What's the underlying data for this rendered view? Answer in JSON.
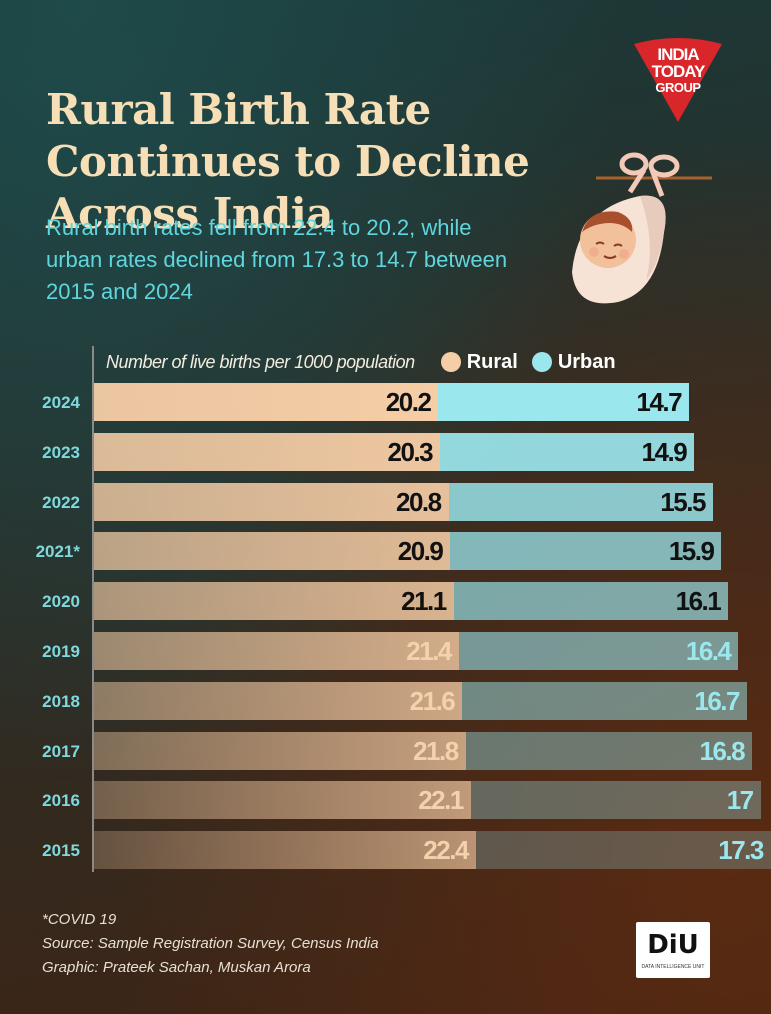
{
  "header": {
    "title": "Rural Birth Rate Continues to Decline Across India",
    "subtitle": "Rural birth rates fell from 22.4 to 20.2, while urban rates declined from 17.3 to 14.7 between 2015 and 2024",
    "logo_text": [
      "INDIA",
      "TODAY",
      "GROUP"
    ]
  },
  "legend": {
    "label": "Number of live births per 1000 population",
    "items": [
      {
        "name": "Rural",
        "color": "#f5cda6"
      },
      {
        "name": "Urban",
        "color": "#9be7ee"
      }
    ]
  },
  "chart_data": {
    "type": "bar",
    "stacked": true,
    "orientation": "horizontal",
    "categories": [
      "2024",
      "2023",
      "2022",
      "2021*",
      "2020",
      "2019",
      "2018",
      "2017",
      "2016",
      "2015"
    ],
    "series": [
      {
        "name": "Rural",
        "values": [
          20.2,
          20.3,
          20.8,
          20.9,
          21.1,
          21.4,
          21.6,
          21.8,
          22.1,
          22.4
        ]
      },
      {
        "name": "Urban",
        "values": [
          14.7,
          14.9,
          15.5,
          15.9,
          16.1,
          16.4,
          16.7,
          16.8,
          17,
          17.3
        ]
      }
    ],
    "value_labels": {
      "Rural": [
        "20.2",
        "20.3",
        "20.8",
        "20.9",
        "21.1",
        "21.4",
        "21.6",
        "21.8",
        "22.1",
        "22.4"
      ],
      "Urban": [
        "14.7",
        "14.9",
        "15.5",
        "15.9",
        "16.1",
        "16.4",
        "16.7",
        "16.8",
        "17",
        "17.3"
      ]
    },
    "colors": {
      "rural": "#f5cda6",
      "urban": "#9be7ee",
      "year_label": "#7fd9dc"
    }
  },
  "footer": {
    "note": "*COVID 19",
    "source": "Source: Sample Registration Survey, Census India",
    "credit": "Graphic: Prateek Sachan, Muskan Arora"
  },
  "brand": {
    "diu_logo": "DiU",
    "diu_tagline": "DATA INTELLIGENCE UNIT"
  }
}
